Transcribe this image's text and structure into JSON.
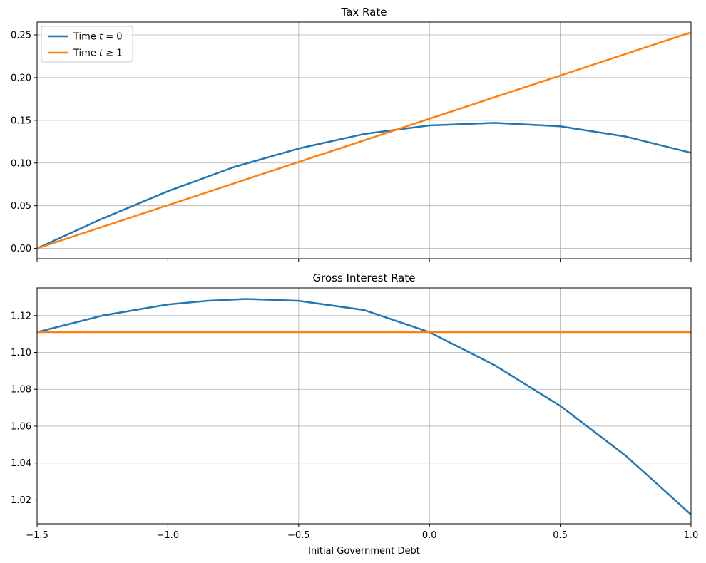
{
  "chart_data": [
    {
      "type": "line",
      "title": "Tax Rate",
      "xlabel": "",
      "ylabel": "",
      "xlim": [
        -1.5,
        1.0
      ],
      "ylim": [
        -0.012,
        0.265
      ],
      "xticks": [
        -1.5,
        -1.0,
        -0.5,
        0.0,
        0.5,
        1.0
      ],
      "xtick_labels_visible": false,
      "yticks": [
        0.0,
        0.05,
        0.1,
        0.15,
        0.2,
        0.25
      ],
      "ytick_labels": [
        "0.00",
        "0.05",
        "0.10",
        "0.15",
        "0.20",
        "0.25"
      ],
      "grid": true,
      "legend": {
        "placement": "top-left",
        "entries": [
          {
            "prefix": "Time ",
            "var": "t",
            "suffix": " = 0",
            "color": "#1f77b4"
          },
          {
            "prefix": "Time ",
            "var": "t",
            "suffix": " ≥ 1",
            "color": "#ff7f0e"
          }
        ]
      },
      "series": [
        {
          "color": "#1f77b4",
          "x": [
            -1.5,
            -1.25,
            -1.0,
            -0.75,
            -0.5,
            -0.25,
            0.0,
            0.25,
            0.5,
            0.75,
            1.0
          ],
          "y": [
            0.0,
            0.035,
            0.067,
            0.095,
            0.117,
            0.134,
            0.144,
            0.147,
            0.143,
            0.131,
            0.112
          ]
        },
        {
          "color": "#ff7f0e",
          "x": [
            -1.5,
            1.0
          ],
          "y": [
            0.0,
            0.253
          ]
        }
      ]
    },
    {
      "type": "line",
      "title": "Gross Interest Rate",
      "xlabel": "Initial Government Debt",
      "ylabel": "",
      "xlim": [
        -1.5,
        1.0
      ],
      "ylim": [
        1.007,
        1.135
      ],
      "xticks": [
        -1.5,
        -1.0,
        -0.5,
        0.0,
        0.5,
        1.0
      ],
      "xtick_labels": [
        "−1.5",
        "−1.0",
        "−0.5",
        "0.0",
        "0.5",
        "1.0"
      ],
      "yticks": [
        1.02,
        1.04,
        1.06,
        1.08,
        1.1,
        1.12
      ],
      "ytick_labels": [
        "1.02",
        "1.04",
        "1.06",
        "1.08",
        "1.10",
        "1.12"
      ],
      "grid": true,
      "series": [
        {
          "color": "#1f77b4",
          "x": [
            -1.5,
            -1.25,
            -1.0,
            -0.85,
            -0.7,
            -0.5,
            -0.25,
            0.0,
            0.25,
            0.5,
            0.75,
            1.0
          ],
          "y": [
            1.111,
            1.12,
            1.126,
            1.128,
            1.129,
            1.128,
            1.123,
            1.111,
            1.093,
            1.071,
            1.044,
            1.012
          ]
        },
        {
          "color": "#ff7f0e",
          "x": [
            -1.5,
            1.0
          ],
          "y": [
            1.111,
            1.111
          ]
        }
      ]
    }
  ]
}
